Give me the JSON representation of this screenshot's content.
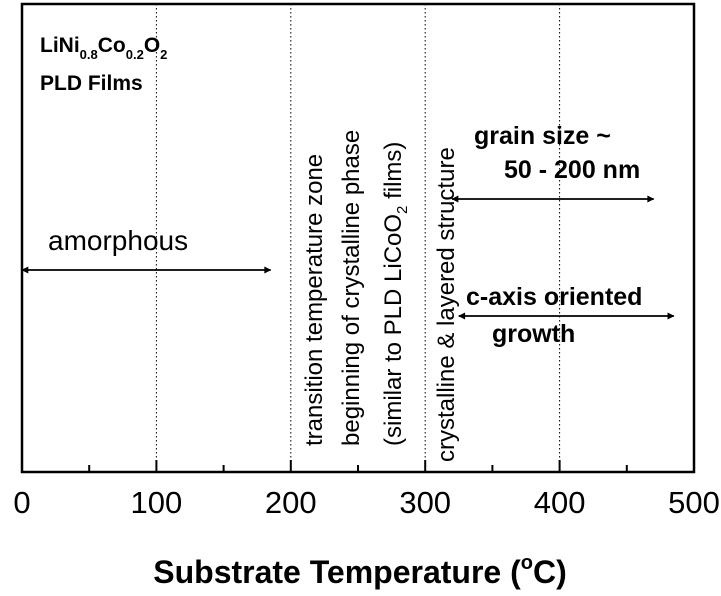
{
  "chart_data": {
    "type": "annotated-axis",
    "xlabel": "Substrate Temperature (°C)",
    "xlabel_main": "Substrate Temperature (",
    "xlabel_sup": "o",
    "xlabel_end": "C)",
    "xlim": [
      0,
      500
    ],
    "xticks": [
      0,
      100,
      200,
      300,
      400,
      500
    ],
    "minor_ticks": [
      50,
      150,
      250,
      350,
      450
    ],
    "gridlines": [
      100,
      200,
      300,
      400
    ],
    "grid": true,
    "title": {
      "line1": {
        "base": "LiNi",
        "sub1": "0.8",
        "mid": "Co",
        "sub2": "0.2",
        "end": "O",
        "sub3": "2"
      },
      "line2": "PLD Films"
    },
    "regions": [
      {
        "label": "amorphous",
        "x_start": 0,
        "x_end": 185
      },
      {
        "label": "transition temperature zone",
        "orientation": "vertical",
        "x": 224
      },
      {
        "label": "beginning of crystalline phase",
        "orientation": "vertical",
        "x": 257
      },
      {
        "label_prefix": "(similar to PLD LiCoO",
        "label_sub": "2",
        "label_suffix": " films)",
        "orientation": "vertical",
        "x": 289
      },
      {
        "label": "crystalline & layered structure",
        "orientation": "vertical",
        "x": 320
      },
      {
        "label_line1": "grain size ~",
        "label_line2": "50 - 200 nm",
        "x_start": 320,
        "x_end": 470
      },
      {
        "label_line1": "c-axis oriented",
        "label_line2": "growth",
        "x_start": 325,
        "x_end": 485
      }
    ]
  }
}
